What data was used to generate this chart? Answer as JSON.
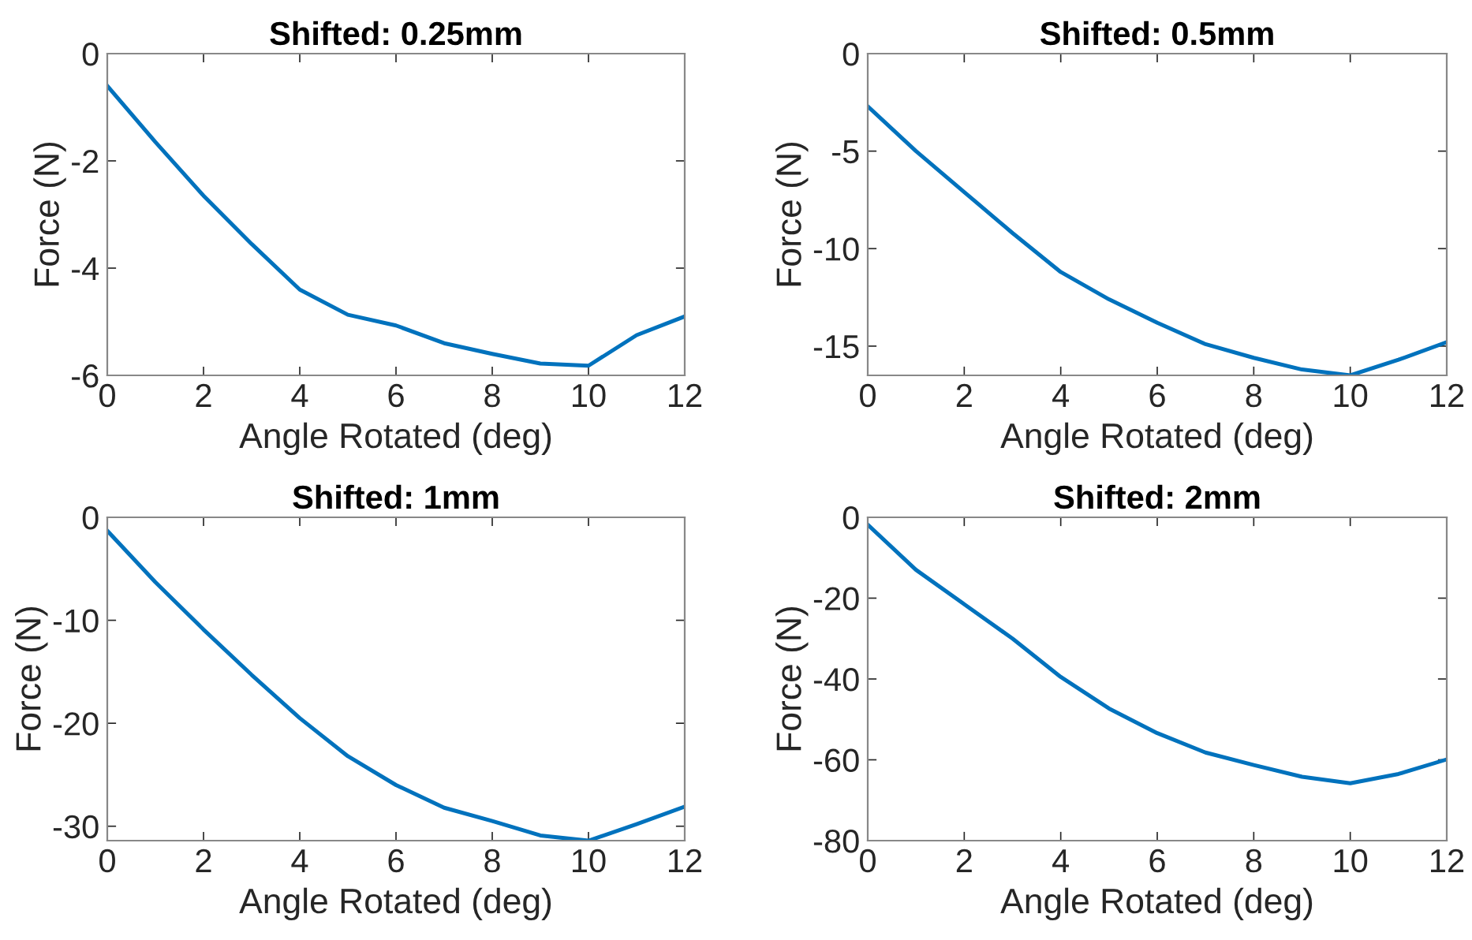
{
  "chart_data": [
    {
      "type": "line",
      "title": "Shifted: 0.25mm",
      "xlabel": "Angle Rotated (deg)",
      "ylabel": "Force (N)",
      "x": [
        0,
        1,
        2,
        3,
        4,
        5,
        6,
        7,
        8,
        9,
        10,
        11,
        12
      ],
      "series": [
        {
          "color": "#0072bd",
          "values": [
            -0.6,
            -1.65,
            -2.65,
            -3.55,
            -4.4,
            -4.87,
            -5.07,
            -5.4,
            -5.6,
            -5.78,
            -5.82,
            -5.25,
            -4.9
          ]
        }
      ],
      "xlim": [
        0,
        12
      ],
      "xticks": [
        0,
        2,
        4,
        6,
        8,
        10,
        12
      ],
      "ylim": [
        -6,
        0
      ],
      "yticks": [
        -6,
        -4,
        -2,
        0
      ]
    },
    {
      "type": "line",
      "title": "Shifted: 0.5mm",
      "xlabel": "Angle Rotated (deg)",
      "ylabel": "Force (N)",
      "x": [
        0,
        1,
        2,
        3,
        4,
        5,
        6,
        7,
        8,
        9,
        10,
        11,
        12
      ],
      "series": [
        {
          "color": "#0072bd",
          "values": [
            -2.7,
            -5.0,
            -7.1,
            -9.2,
            -11.2,
            -12.6,
            -13.8,
            -14.9,
            -15.6,
            -16.2,
            -16.5,
            -15.7,
            -14.8
          ]
        }
      ],
      "xlim": [
        0,
        12
      ],
      "xticks": [
        0,
        2,
        4,
        6,
        8,
        10,
        12
      ],
      "ylim": [
        -16.5,
        0
      ],
      "yticks": [
        -15,
        -10,
        -5,
        0
      ]
    },
    {
      "type": "line",
      "title": "Shifted: 1mm",
      "xlabel": "Angle Rotated (deg)",
      "ylabel": "Force (N)",
      "x": [
        0,
        1,
        2,
        3,
        4,
        5,
        6,
        7,
        8,
        9,
        10,
        11,
        12
      ],
      "series": [
        {
          "color": "#0072bd",
          "values": [
            -1.3,
            -6.3,
            -10.9,
            -15.3,
            -19.5,
            -23.2,
            -26.0,
            -28.2,
            -29.5,
            -30.9,
            -31.4,
            -29.8,
            -28.1
          ]
        }
      ],
      "xlim": [
        0,
        12
      ],
      "xticks": [
        0,
        2,
        4,
        6,
        8,
        10,
        12
      ],
      "ylim": [
        -31.4,
        0
      ],
      "yticks": [
        -30,
        -20,
        -10,
        0
      ]
    },
    {
      "type": "line",
      "title": "Shifted: 2mm",
      "xlabel": "Angle Rotated (deg)",
      "ylabel": "Force (N)",
      "x": [
        0,
        1,
        2,
        3,
        4,
        5,
        6,
        7,
        8,
        9,
        10,
        11,
        12
      ],
      "series": [
        {
          "color": "#0072bd",
          "values": [
            -1.8,
            -13,
            -21.5,
            -30,
            -39.5,
            -47.3,
            -53.4,
            -58.2,
            -61.3,
            -64.2,
            -65.8,
            -63.5,
            -59.9
          ]
        }
      ],
      "xlim": [
        0,
        12
      ],
      "xticks": [
        0,
        2,
        4,
        6,
        8,
        10,
        12
      ],
      "ylim": [
        -80,
        0
      ],
      "yticks": [
        -80,
        -60,
        -40,
        -20,
        0
      ]
    }
  ]
}
